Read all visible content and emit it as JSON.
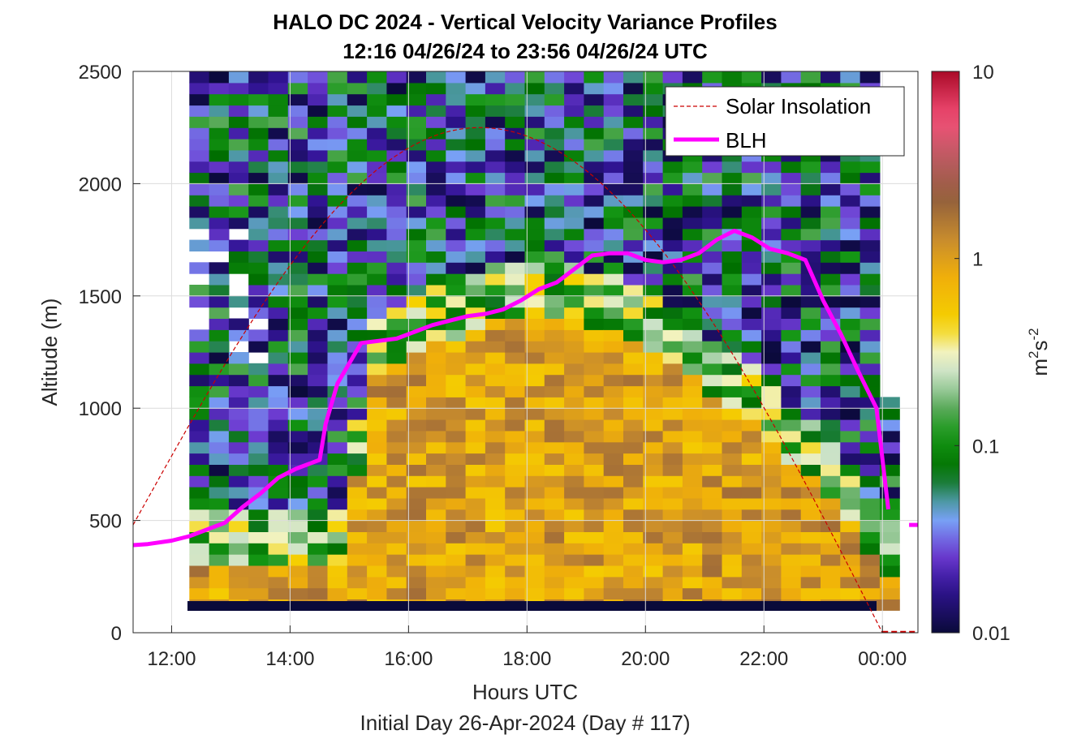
{
  "chart_data": {
    "type": "heatmap",
    "title": "HALO DC 2024 - Vertical Velocity Variance Profiles",
    "subtitle": "12:16 04/26/24 to 23:56 04/26/24  UTC",
    "xlabel": "Hours UTC",
    "xlabel2": "Initial Day 26-Apr-2024 (Day # 117)",
    "ylabel": "Altitude (m)",
    "xlim": [
      11.35,
      24.6
    ],
    "ylim": [
      0,
      2500
    ],
    "x_ticks": [
      12,
      14,
      16,
      18,
      20,
      22,
      24
    ],
    "x_tick_labels": [
      "12:00",
      "14:00",
      "16:00",
      "18:00",
      "20:00",
      "22:00",
      "00:00"
    ],
    "y_ticks": [
      0,
      500,
      1000,
      1500,
      2000,
      2500
    ],
    "y_tick_labels": [
      "0",
      "500",
      "1000",
      "1500",
      "2000",
      "2500"
    ],
    "grid": true,
    "colorbar": {
      "label": "m²s⁻²",
      "label_main": "m",
      "label_sup1": "2",
      "label_mid": "s",
      "label_sup2": "-2",
      "scale": "log",
      "range": [
        0.01,
        10
      ],
      "ticks": [
        0.01,
        0.1,
        1,
        10
      ],
      "tick_labels": [
        "0.01",
        "0.1",
        "1",
        "10"
      ]
    },
    "legend": {
      "placement": "top-right",
      "entries": [
        {
          "label": "Solar Insolation",
          "color": "#cc0000",
          "style": "dashed"
        },
        {
          "label": "BLH",
          "color": "#ff00ff",
          "style": "solid"
        }
      ]
    },
    "grid_data": {
      "x_start": 12.3,
      "x_step": 0.333,
      "n_cols": 36,
      "y_start": 100,
      "y_step": 50,
      "n_rows": 48,
      "value_scale": "log10 of variance",
      "cloud_top_top": 1100,
      "cloud_top_bottom": 1640,
      "hole_from_column": 35
    },
    "blh": {
      "x": [
        11.35,
        11.6,
        12.0,
        12.3,
        12.6,
        12.9,
        13.2,
        13.5,
        13.8,
        14.1,
        14.3,
        14.5,
        14.6,
        14.8,
        15.0,
        15.2,
        15.5,
        15.8,
        16.1,
        16.4,
        16.7,
        17.0,
        17.3,
        17.6,
        17.9,
        18.2,
        18.5,
        18.8,
        19.1,
        19.4,
        19.7,
        20.0,
        20.3,
        20.6,
        20.9,
        21.2,
        21.5,
        21.8,
        22.1,
        22.4,
        22.7,
        23.0,
        23.3,
        23.6,
        23.9,
        24.1
      ],
      "y": [
        390,
        395,
        410,
        430,
        460,
        490,
        560,
        620,
        690,
        730,
        750,
        770,
        930,
        1110,
        1200,
        1290,
        1300,
        1310,
        1340,
        1370,
        1390,
        1410,
        1420,
        1440,
        1480,
        1530,
        1560,
        1620,
        1680,
        1690,
        1690,
        1660,
        1650,
        1660,
        1690,
        1750,
        1790,
        1760,
        1710,
        1690,
        1660,
        1480,
        1330,
        1160,
        1000,
        550
      ],
      "segment2_x": [
        24.45,
        24.6
      ],
      "segment2_y": [
        480,
        480
      ]
    },
    "solar": {
      "x_start": 11.35,
      "x_peak": 17.2,
      "x_end": 24.0,
      "peak_y": 2250,
      "start_y": 480,
      "end_y": 0
    }
  }
}
